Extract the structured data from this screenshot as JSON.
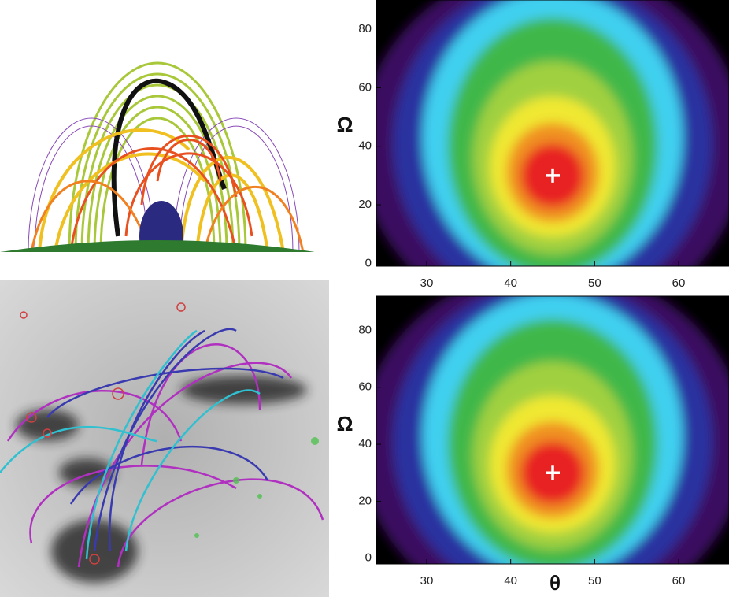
{
  "chart_data": [
    {
      "type": "heatmap",
      "ylabel": "Ω",
      "xlim": [
        24,
        66
      ],
      "ylim": [
        -1,
        90
      ],
      "xticks": [
        30,
        40,
        50,
        60
      ],
      "yticks": [
        0,
        20,
        40,
        60,
        80
      ],
      "peak": {
        "x": 45,
        "y": 30
      }
    },
    {
      "type": "heatmap",
      "ylabel": "Ω",
      "xlabel": "θ",
      "xlim": [
        24,
        66
      ],
      "ylim": [
        -2,
        92
      ],
      "xticks": [
        30,
        40,
        50,
        60
      ],
      "yticks": [
        0,
        20,
        40,
        60,
        80
      ],
      "peak": {
        "x": 45,
        "y": 30
      }
    }
  ]
}
